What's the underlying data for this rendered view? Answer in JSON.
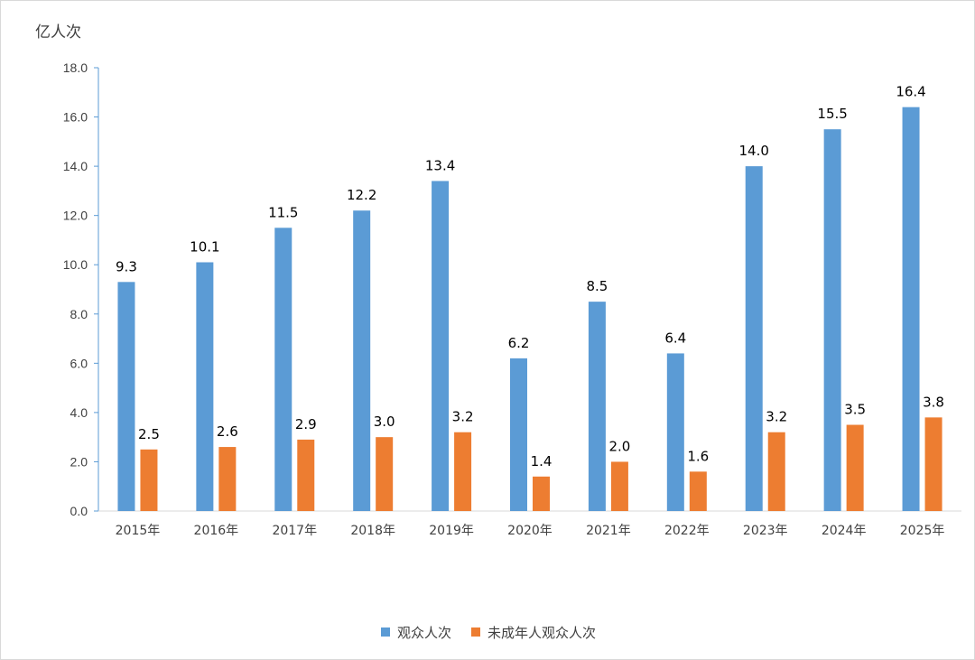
{
  "chart_data": {
    "type": "bar",
    "unit_label": "亿人次",
    "categories": [
      "2015年",
      "2016年",
      "2017年",
      "2018年",
      "2019年",
      "2020年",
      "2021年",
      "2022年",
      "2023年",
      "2024年",
      "2025年"
    ],
    "series": [
      {
        "name": "观众人次",
        "color": "#5B9BD5",
        "values": [
          9.3,
          10.1,
          11.5,
          12.2,
          13.4,
          6.2,
          8.5,
          6.4,
          14.0,
          15.5,
          16.4
        ]
      },
      {
        "name": "未成年人观众人次",
        "color": "#ED7D31",
        "values": [
          2.5,
          2.6,
          2.9,
          3.0,
          3.2,
          1.4,
          2.0,
          1.6,
          3.2,
          3.5,
          3.8
        ]
      }
    ],
    "ylim": [
      0,
      18
    ],
    "yticks": [
      "0.0",
      "2.0",
      "4.0",
      "6.0",
      "8.0",
      "10.0",
      "12.0",
      "14.0",
      "16.0",
      "18.0"
    ],
    "grid": false,
    "legend": "bottom"
  }
}
